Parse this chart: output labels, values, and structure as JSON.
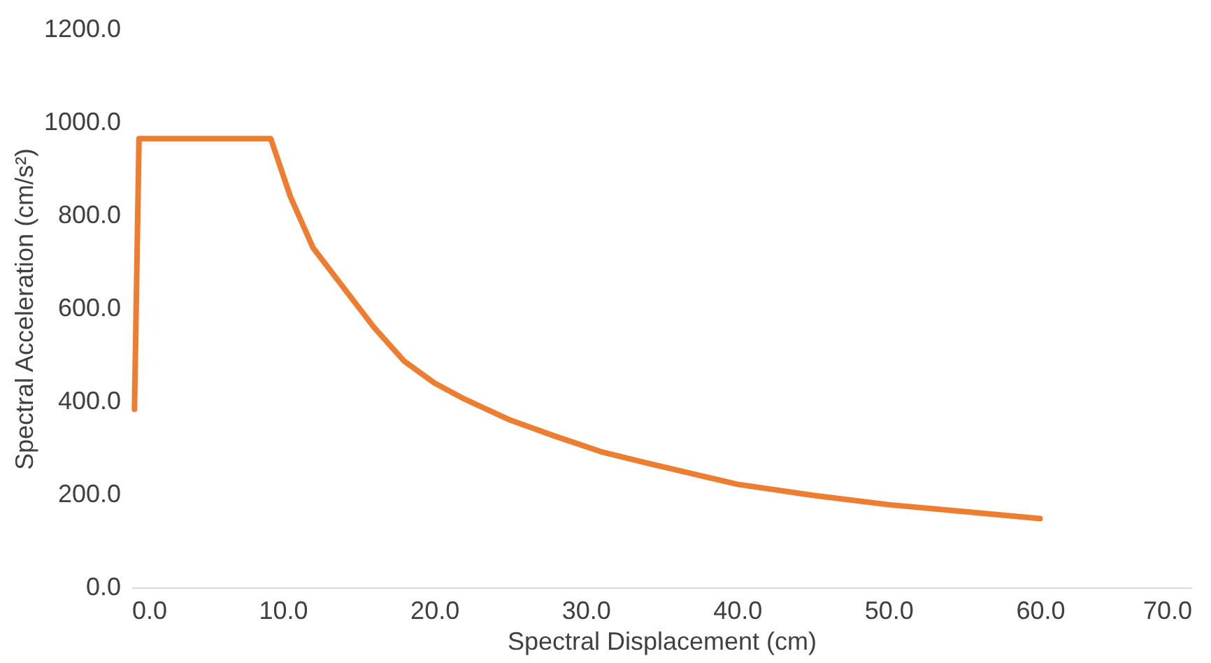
{
  "chart_data": {
    "type": "line",
    "xlabel": "Spectral Displacement (cm)",
    "ylabel": "Spectral Acceleration (cm/s²)",
    "x": [
      0.2,
      0.5,
      9.2,
      10.5,
      12,
      14,
      16,
      18,
      20,
      22,
      25,
      28,
      31,
      34,
      37,
      40,
      45,
      50,
      55,
      60
    ],
    "series": [
      {
        "color": "#ed7d31",
        "values": [
          383,
          965,
          965,
          840,
          730,
          645,
          560,
          487,
          440,
          405,
          360,
          325,
          292,
          268,
          245,
          222,
          198,
          178,
          163,
          148
        ]
      }
    ],
    "xlim": [
      0,
      70
    ],
    "xticks": [
      {
        "value": 0,
        "label": "0.0"
      },
      {
        "value": 10,
        "label": "10.0"
      },
      {
        "value": 20,
        "label": "20.0"
      },
      {
        "value": 30,
        "label": "30.0"
      },
      {
        "value": 40,
        "label": "40.0"
      },
      {
        "value": 50,
        "label": "50.0"
      },
      {
        "value": 60,
        "label": "60.0"
      },
      {
        "value": 70,
        "label": "70.0"
      }
    ],
    "ylim": [
      0,
      1200
    ],
    "yticks": [
      {
        "value": 0,
        "label": "0.0"
      },
      {
        "value": 200,
        "label": "200.0"
      },
      {
        "value": 400,
        "label": "400.0"
      },
      {
        "value": 600,
        "label": "600.0"
      },
      {
        "value": 800,
        "label": "800.0"
      },
      {
        "value": 1000,
        "label": "1000.0"
      },
      {
        "value": 1200,
        "label": "1200.0"
      }
    ],
    "grid": false,
    "marker": "none",
    "line_style": "solid"
  }
}
